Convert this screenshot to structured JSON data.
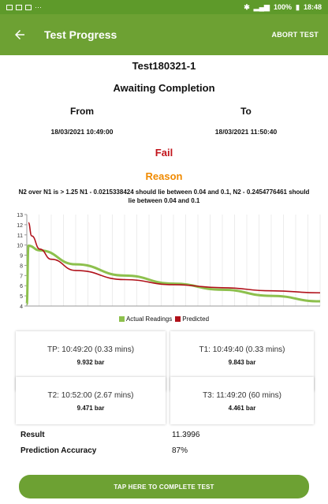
{
  "status_bar": {
    "time": "18:48",
    "battery": "100%"
  },
  "appbar": {
    "title": "Test Progress",
    "abort_label": "ABORT TEST"
  },
  "test": {
    "name": "Test180321-1",
    "status": "Awaiting Completion",
    "from_label": "From",
    "to_label": "To",
    "from_value": "18/03/2021 10:49:00",
    "to_value": "18/03/2021 11:50:40",
    "result_flag": "Fail",
    "reason_title": "Reason",
    "reason_text": "N2 over N1 is > 1.25 N1 - 0.0215338424 should lie between 0.04 and 0.1, N2 - 0.2454776461 should lie between 0.04 and 0.1"
  },
  "colors": {
    "accent": "#6da133",
    "actual": "#8dc04d",
    "predicted": "#b0111a",
    "fail": "#c2141b",
    "reason": "#f08a00"
  },
  "chart_data": {
    "type": "line",
    "y_ticks": [
      4,
      5,
      6,
      7,
      8,
      9,
      10,
      11,
      12,
      13
    ],
    "ylim": [
      4,
      13
    ],
    "xlim": [
      0,
      60
    ],
    "grid": "vertical",
    "legend_position": "bottom-center",
    "series": [
      {
        "name": "Actual Readings",
        "color": "#8dc04d",
        "x": [
          0,
          0.33,
          2.67,
          10,
          20,
          30,
          40,
          50,
          60
        ],
        "y": [
          4.2,
          9.932,
          9.471,
          8.1,
          7.0,
          6.2,
          5.6,
          5.0,
          4.461
        ]
      },
      {
        "name": "Predicted",
        "color": "#b0111a",
        "x": [
          0.33,
          1,
          2.67,
          5,
          10,
          20,
          30,
          40,
          50,
          60
        ],
        "y": [
          12.2,
          10.9,
          9.6,
          8.6,
          7.5,
          6.6,
          6.1,
          5.8,
          5.5,
          5.3
        ]
      }
    ]
  },
  "readings": [
    {
      "label": "TP: 10:49:20 (0.33 mins)",
      "value": "9.932 bar"
    },
    {
      "label": "T1: 10:49:40 (0.33 mins)",
      "value": "9.843 bar"
    },
    {
      "label": "T2: 10:52:00 (2.67 mins)",
      "value": "9.471 bar"
    },
    {
      "label": "T3: 11:49:20 (60 mins)",
      "value": "4.461 bar"
    }
  ],
  "summary": {
    "result_label": "Result",
    "result_value": "11.3996",
    "accuracy_label": "Prediction Accuracy",
    "accuracy_value": "87%"
  },
  "complete_label": "TAP HERE TO COMPLETE TEST"
}
